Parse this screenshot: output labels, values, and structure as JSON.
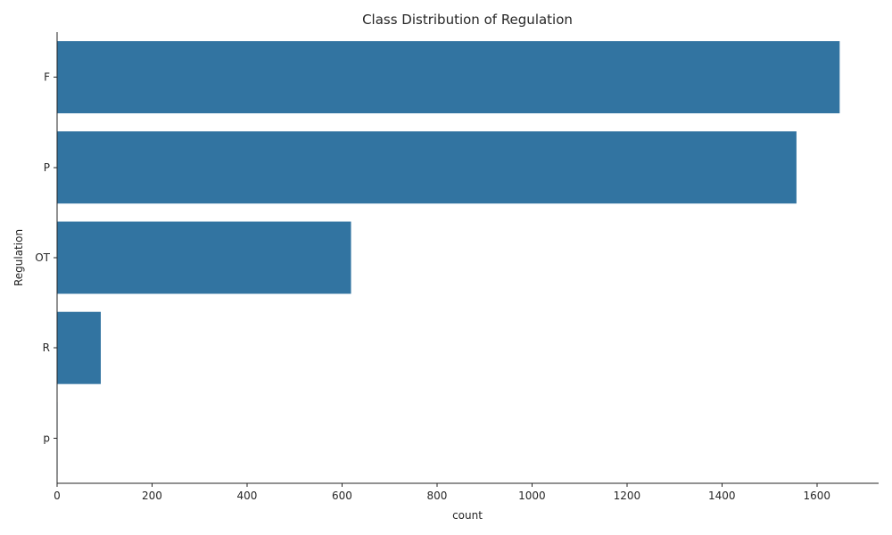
{
  "chart_data": {
    "type": "bar",
    "orientation": "horizontal",
    "title": "Class Distribution of Regulation",
    "xlabel": "count",
    "ylabel": "Regulation",
    "categories": [
      "F",
      "P",
      "OT",
      "R",
      "p"
    ],
    "values": [
      1648,
      1557,
      619,
      92,
      1
    ],
    "xlim": [
      0,
      1730
    ],
    "xticks": [
      0,
      200,
      400,
      600,
      800,
      1000,
      1200,
      1400,
      1600
    ],
    "bar_color": "#3274a1",
    "grid": false,
    "legend": "none"
  }
}
